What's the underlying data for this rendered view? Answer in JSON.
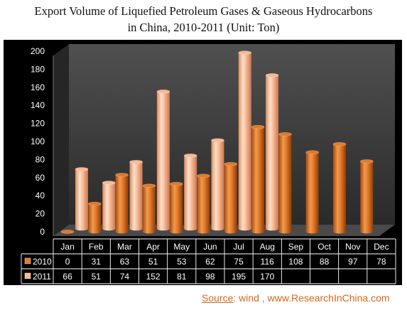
{
  "title_lines": [
    "Export Volume of Liquefied Petroleum Gases & Gaseous Hydrocarbons",
    "in China, 2010-2011 (Unit: Ton)"
  ],
  "source": {
    "label": "Source",
    "text": ": wind ,  www.ResearchInChina.com"
  },
  "colors": {
    "series_2010": "#e07a2a",
    "series_2011": "#f8b894",
    "background": "#000000",
    "wall": "#3a3a3a",
    "text": "#ffffff"
  },
  "chart_data": {
    "type": "bar",
    "title": "Export Volume of Liquefied Petroleum Gases & Gaseous Hydrocarbons in China, 2010-2011 (Unit: Ton)",
    "categories": [
      "Jan",
      "Feb",
      "Mar",
      "Apr",
      "May",
      "Jun",
      "Jul",
      "Aug",
      "Sep",
      "Oct",
      "Nov",
      "Dec"
    ],
    "series": [
      {
        "name": "2010",
        "values": [
          0,
          31,
          63,
          51,
          53,
          62,
          75,
          116,
          108,
          88,
          97,
          78
        ]
      },
      {
        "name": "2011",
        "values": [
          66,
          51,
          74,
          152,
          81,
          98,
          195,
          170,
          null,
          null,
          null,
          null
        ]
      }
    ],
    "ylim": [
      0,
      200
    ],
    "yticks": [
      "0",
      "20",
      "40",
      "60",
      "80",
      "100",
      "120",
      "140",
      "160",
      "180",
      "200"
    ],
    "grid": false,
    "legend": "data-table",
    "table": {
      "rows": [
        {
          "label": "2010",
          "cells": [
            "0",
            "31",
            "63",
            "51",
            "53",
            "62",
            "75",
            "116",
            "108",
            "88",
            "97",
            "78"
          ]
        },
        {
          "label": "2011",
          "cells": [
            "66",
            "51",
            "74",
            "152",
            "81",
            "98",
            "195",
            "170",
            "",
            "",
            "",
            ""
          ]
        }
      ]
    }
  }
}
